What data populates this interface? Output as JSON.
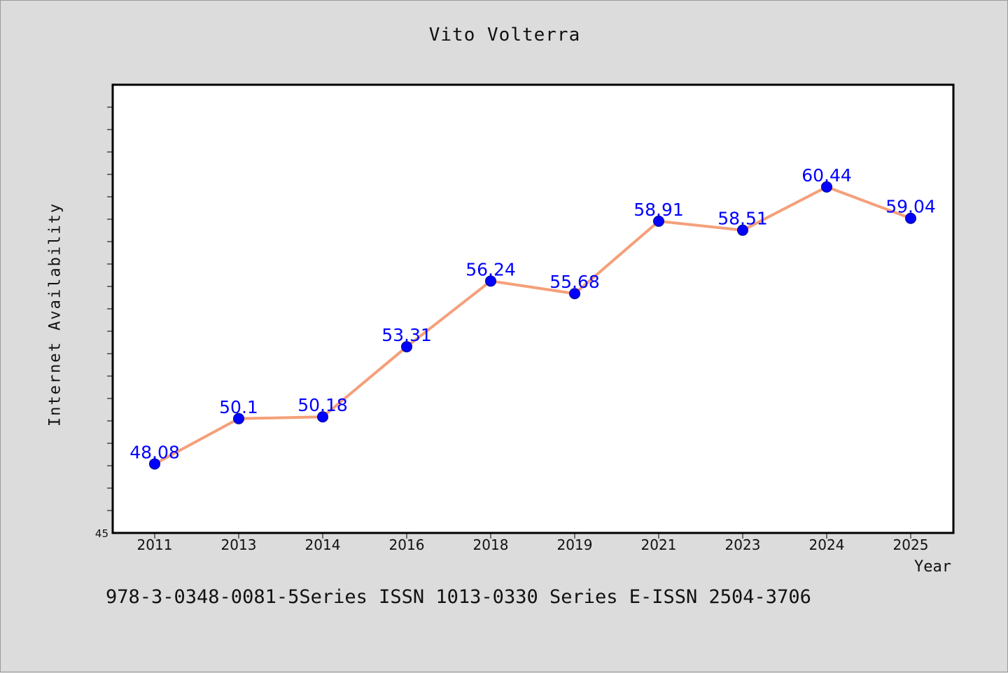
{
  "chart_data": {
    "type": "line",
    "title": "Vito Volterra",
    "xlabel": "Year",
    "ylabel": "Internet Availability",
    "x": [
      "2011",
      "2013",
      "2014",
      "2016",
      "2018",
      "2019",
      "2021",
      "2023",
      "2024",
      "2025"
    ],
    "series": [
      {
        "values": [
          48.08,
          50.1,
          50.18,
          53.31,
          56.24,
          55.68,
          58.91,
          58.51,
          60.44,
          59.04
        ]
      }
    ],
    "y_tick_labels": [
      "45"
    ],
    "ylim": [
      45,
      65
    ],
    "grid": false,
    "line_color": "#f4a07a",
    "marker_color": "#0000ff",
    "label_color": "#0000ff"
  },
  "footer_text": "978-3-0348-0081-5Series ISSN 1013-0330 Series E-ISSN 2504-3706"
}
